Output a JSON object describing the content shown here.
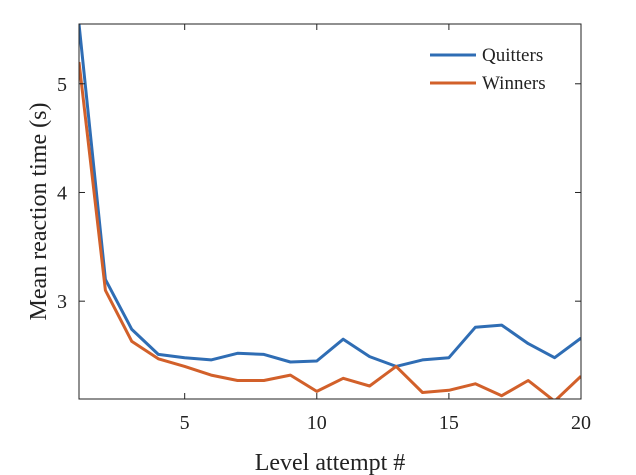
{
  "chart_data": {
    "type": "line",
    "title": "",
    "xlabel": "Level attempt #",
    "ylabel": "Mean reaction time (s)",
    "xlim": [
      1,
      20
    ],
    "ylim": [
      2.1,
      5.55
    ],
    "xticks": [
      5,
      10,
      15,
      20
    ],
    "yticks": [
      3,
      4,
      5
    ],
    "grid": false,
    "legend_position": "top-right",
    "x": [
      1,
      2,
      3,
      4,
      5,
      6,
      7,
      8,
      9,
      10,
      11,
      12,
      13,
      14,
      15,
      16,
      17,
      18,
      19,
      20
    ],
    "series": [
      {
        "name": "Quitters",
        "color": "#2f6db4",
        "values": [
          5.55,
          3.2,
          2.74,
          2.51,
          2.48,
          2.46,
          2.52,
          2.51,
          2.44,
          2.45,
          2.65,
          2.49,
          2.4,
          2.46,
          2.48,
          2.76,
          2.78,
          2.61,
          2.48,
          2.66
        ]
      },
      {
        "name": "Winners",
        "color": "#d2602a",
        "values": [
          5.2,
          3.1,
          2.63,
          2.47,
          2.4,
          2.32,
          2.27,
          2.27,
          2.32,
          2.17,
          2.29,
          2.22,
          2.4,
          2.16,
          2.18,
          2.24,
          2.13,
          2.27,
          2.08,
          2.31
        ]
      }
    ]
  }
}
